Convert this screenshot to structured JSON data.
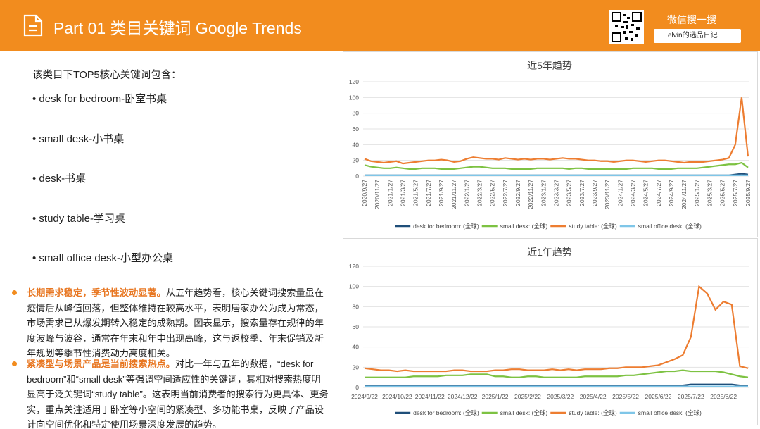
{
  "header": {
    "title": "Part 01 类目关键词 Google Trends",
    "wechat": "微信搜一搜",
    "search": "elvin的选品日记"
  },
  "intro": "该类目下TOP5核心关键词包含：",
  "keywords": [
    "desk for bedroom-卧室书桌",
    "small desk-小书桌",
    "desk-书桌",
    "study table-学习桌",
    "small office desk-小型办公桌"
  ],
  "paragraphs": [
    {
      "lead": "长期需求稳定，季节性波动显著。",
      "body": "从五年趋势看，核心关键词搜索量虽在疫情后从峰值回落，但整体维持在较高水平，表明居家办公为成为常态，市场需求已从爆发期转入稳定的成熟期。图表显示，搜索量存在规律的年度波峰与波谷，通常在年末和年中出现高峰，这与返校季、年末促销及新年规划等季节性消费动力高度相关。"
    },
    {
      "lead": "紧凑型与场景产品是当前搜索热点。",
      "body": "对比一年与五年的数据，“desk for bedroom”和“small desk”等强调空间适应性的关键词，其相对搜索热度明显高于泛关键词“study table”。这表明当前消费者的搜索行为更具体、更务实，重点关注适用于卧室等小空间的紧凑型、多功能书桌，反映了产品设计向空间优化和特定使用场景深度发展的趋势。"
    }
  ],
  "chart_data": [
    {
      "type": "line",
      "title": "近5年趋势",
      "ylim": [
        0,
        120
      ],
      "yticks": [
        0,
        20,
        40,
        60,
        80,
        100,
        120
      ],
      "x_label_rotate": true,
      "categories": [
        "2020/9/27",
        null,
        "2020/11/27",
        null,
        "2021/1/27",
        null,
        "2021/3/27",
        null,
        "2021/5/27",
        null,
        "2021/7/27",
        null,
        "2021/9/27",
        null,
        "2021/11/27",
        null,
        "2022/1/27",
        null,
        "2022/3/27",
        null,
        "2022/5/27",
        null,
        "2022/7/27",
        null,
        "2022/9/27",
        null,
        "2022/11/27",
        null,
        "2023/1/27",
        null,
        "2023/3/27",
        null,
        "2023/5/27",
        null,
        "2023/7/27",
        null,
        "2023/9/27",
        null,
        "2023/11/27",
        null,
        "2024/1/27",
        null,
        "2024/3/27",
        null,
        "2024/5/27",
        null,
        "2024/7/27",
        null,
        "2024/9/27",
        null,
        "2024/11/27",
        null,
        "2025/1/27",
        null,
        "2025/3/27",
        null,
        "2025/5/27",
        null,
        "2025/7/27",
        null,
        "2025/9/27"
      ],
      "series": [
        {
          "name": "desk for bedroom: (全球)",
          "color": "#1f4e79",
          "values": [
            1,
            1,
            1,
            1,
            1,
            1,
            1,
            1,
            1,
            1,
            1,
            1,
            1,
            1,
            1,
            1,
            1,
            1,
            1,
            1,
            1,
            1,
            1,
            1,
            1,
            1,
            1,
            1,
            1,
            1,
            1,
            1,
            1,
            1,
            1,
            1,
            1,
            1,
            1,
            1,
            1,
            1,
            1,
            1,
            1,
            1,
            1,
            1,
            1,
            1,
            1,
            1,
            1,
            1,
            1,
            1,
            1,
            1,
            2,
            3,
            2
          ]
        },
        {
          "name": "small desk: (全球)",
          "color": "#7dc242",
          "values": [
            14,
            12,
            11,
            10,
            10,
            11,
            10,
            9,
            9,
            10,
            10,
            10,
            9,
            9,
            9,
            10,
            11,
            12,
            12,
            11,
            10,
            10,
            10,
            9,
            9,
            9,
            9,
            10,
            10,
            10,
            10,
            10,
            9,
            10,
            10,
            9,
            9,
            9,
            9,
            9,
            9,
            9,
            10,
            10,
            10,
            10,
            9,
            9,
            9,
            10,
            10,
            10,
            10,
            11,
            12,
            13,
            14,
            15,
            15,
            17,
            11
          ]
        },
        {
          "name": "study table: (全球)",
          "color": "#ed7d31",
          "values": [
            22,
            19,
            18,
            17,
            18,
            19,
            16,
            17,
            18,
            19,
            20,
            20,
            21,
            20,
            18,
            19,
            22,
            24,
            23,
            22,
            22,
            21,
            23,
            22,
            21,
            22,
            21,
            22,
            22,
            21,
            22,
            23,
            22,
            22,
            21,
            20,
            20,
            19,
            19,
            18,
            19,
            20,
            20,
            19,
            18,
            19,
            20,
            20,
            19,
            18,
            17,
            18,
            18,
            18,
            19,
            20,
            21,
            23,
            40,
            100,
            25
          ]
        },
        {
          "name": "small office desk: (全球)",
          "color": "#7fc6e8",
          "values": [
            1,
            1,
            1,
            1,
            1,
            1,
            1,
            1,
            1,
            1,
            1,
            1,
            1,
            1,
            1,
            1,
            1,
            1,
            1,
            1,
            1,
            1,
            1,
            1,
            1,
            1,
            1,
            1,
            1,
            1,
            1,
            1,
            1,
            1,
            1,
            1,
            1,
            1,
            1,
            1,
            1,
            1,
            1,
            1,
            1,
            1,
            1,
            1,
            1,
            1,
            1,
            1,
            1,
            1,
            1,
            1,
            1,
            1,
            1,
            1,
            1
          ]
        }
      ]
    },
    {
      "type": "line",
      "title": "近1年趋势",
      "ylim": [
        0,
        120
      ],
      "yticks": [
        0,
        20,
        40,
        60,
        80,
        100,
        120
      ],
      "x_label_rotate": false,
      "categories": [
        "2024/9/22",
        null,
        null,
        null,
        "2024/10/22",
        null,
        null,
        null,
        "2024/11/22",
        null,
        null,
        null,
        "2024/12/22",
        null,
        null,
        null,
        "2025/1/22",
        null,
        null,
        null,
        "2025/2/22",
        null,
        null,
        null,
        "2025/3/22",
        null,
        null,
        null,
        "2025/4/22",
        null,
        null,
        null,
        "2025/5/22",
        null,
        null,
        null,
        "2025/6/22",
        null,
        null,
        null,
        "2025/7/22",
        null,
        null,
        null,
        "2025/8/22",
        null,
        null,
        null
      ],
      "series": [
        {
          "name": "desk for bedroom: (全球)",
          "color": "#1f4e79",
          "values": [
            2,
            2,
            2,
            2,
            2,
            2,
            2,
            2,
            2,
            2,
            2,
            2,
            2,
            2,
            2,
            2,
            2,
            2,
            2,
            2,
            2,
            2,
            2,
            2,
            2,
            2,
            2,
            2,
            2,
            2,
            2,
            2,
            2,
            2,
            2,
            2,
            2,
            2,
            2,
            2,
            3,
            3,
            3,
            3,
            3,
            3,
            2,
            2
          ]
        },
        {
          "name": "small desk: (全球)",
          "color": "#7dc242",
          "values": [
            10,
            10,
            10,
            10,
            10,
            10,
            11,
            11,
            11,
            11,
            12,
            12,
            12,
            13,
            13,
            13,
            11,
            11,
            10,
            10,
            11,
            11,
            10,
            10,
            10,
            10,
            10,
            11,
            11,
            11,
            11,
            11,
            12,
            12,
            13,
            14,
            15,
            16,
            16,
            17,
            16,
            16,
            16,
            16,
            15,
            13,
            11,
            10
          ]
        },
        {
          "name": "study table: (全球)",
          "color": "#ed7d31",
          "values": [
            19,
            18,
            17,
            17,
            16,
            17,
            16,
            16,
            16,
            16,
            16,
            17,
            17,
            16,
            16,
            16,
            17,
            17,
            18,
            18,
            17,
            17,
            17,
            18,
            17,
            18,
            17,
            18,
            18,
            18,
            19,
            19,
            20,
            20,
            20,
            21,
            22,
            25,
            28,
            32,
            50,
            100,
            93,
            77,
            85,
            82,
            21,
            19
          ]
        },
        {
          "name": "small office desk: (全球)",
          "color": "#7fc6e8",
          "values": [
            1,
            1,
            1,
            1,
            1,
            1,
            1,
            1,
            1,
            1,
            1,
            1,
            1,
            1,
            1,
            1,
            1,
            1,
            1,
            1,
            1,
            1,
            1,
            1,
            1,
            1,
            1,
            1,
            1,
            1,
            1,
            1,
            1,
            1,
            1,
            1,
            1,
            1,
            1,
            1,
            1,
            1,
            1,
            1,
            1,
            1,
            1,
            1
          ]
        }
      ]
    }
  ]
}
